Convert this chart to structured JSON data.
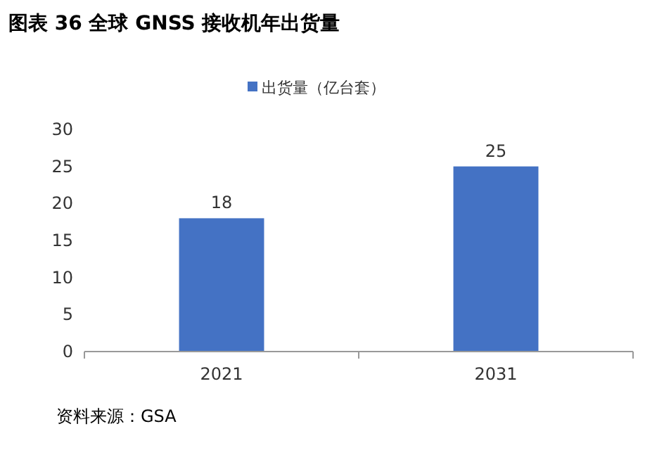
{
  "chart_data": {
    "type": "bar",
    "title": "图表 36 全球 GNSS 接收机年出货量",
    "categories": [
      "2021",
      "2031"
    ],
    "series": [
      {
        "name": "出货量（亿台套）",
        "color": "#4472c4",
        "values": [
          18,
          25
        ]
      }
    ],
    "ylim": [
      0,
      30
    ],
    "yticks": [
      0,
      5,
      10,
      15,
      20,
      25,
      30
    ],
    "data_labels": true,
    "legend": "top",
    "grid": false,
    "annotations": [
      "资料来源：GSA"
    ]
  }
}
